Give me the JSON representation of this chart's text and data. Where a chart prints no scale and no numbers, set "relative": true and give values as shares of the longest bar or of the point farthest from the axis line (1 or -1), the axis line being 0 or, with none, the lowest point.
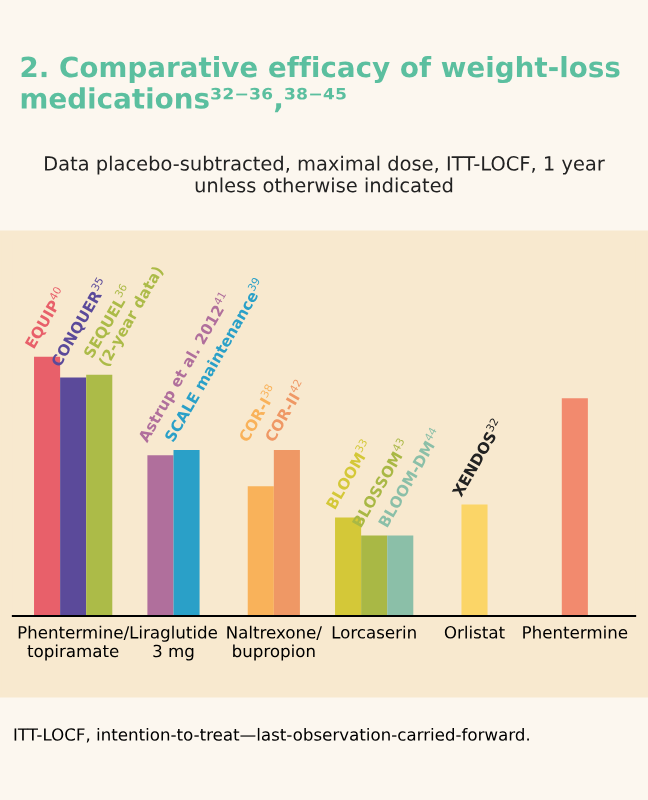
{
  "chart_data": {
    "type": "bar",
    "relative": true,
    "title": "2. Comparative efficacy of weight-loss medications³²⁻³⁶,³⁸⁻⁴⁵",
    "subtitle": "Data placebo-subtracted, maximal dose, ITT-LOCF, 1 year\nunless otherwise indicated",
    "categories": [
      "Phentermine/\ntopiramate",
      "Liraglutide\n3 mg",
      "Naltrexone/\nbupropion",
      "Lorcaserin",
      "Orlistat",
      "Phentermine"
    ],
    "series": [
      {
        "name": "EQUIP$^{40}$",
        "color": "#e8606a",
        "values": [
          1.0,
          null,
          null,
          null,
          null,
          null
        ]
      },
      {
        "name": "CONQUER$^{35}$",
        "color": "#5b4a9a",
        "values": [
          0.92,
          null,
          null,
          null,
          null,
          null
        ]
      },
      {
        "name": "SEQUEL$^{36}$\n(2-year data)",
        "color": "#acbb48",
        "values": [
          0.93,
          null,
          null,
          null,
          null,
          null
        ]
      },
      {
        "name": "Astrup et al. 2012$^{41}$",
        "color": "#b06f9c",
        "values": [
          null,
          0.62,
          null,
          null,
          null,
          null
        ]
      },
      {
        "name": "SCALE maintenance$^{39}$",
        "color": "#2aa0c8",
        "values": [
          null,
          0.64,
          null,
          null,
          null,
          null
        ]
      },
      {
        "name": "COR-I$^{38}$",
        "color": "#f9b25a",
        "values": [
          null,
          null,
          0.5,
          null,
          null,
          null
        ]
      },
      {
        "name": "COR-II$^{42}$",
        "color": "#ef9865",
        "values": [
          null,
          null,
          0.64,
          null,
          null,
          null
        ]
      },
      {
        "name": "BLOOM$^{33}$",
        "color": "#d4c838",
        "values": [
          null,
          null,
          null,
          0.38,
          null,
          null
        ]
      },
      {
        "name": "BLOSSOM$^{43}$",
        "color": "#a9b845",
        "values": [
          null,
          null,
          null,
          0.31,
          null,
          null
        ]
      },
      {
        "name": "BLOOM-DM$^{44}$",
        "color": "#8bbfa8",
        "values": [
          null,
          null,
          null,
          0.31,
          null,
          null
        ]
      },
      {
        "name": "XENDOS$^{32}$",
        "color": "#fbd567",
        "values": [
          null,
          null,
          null,
          null,
          0.43,
          null
        ]
      },
      {
        "color": "#f28a6e",
        "values": [
          null,
          null,
          null,
          null,
          null,
          0.84
        ]
      }
    ],
    "legend": false,
    "grid": false,
    "annotations": [
      "ITT-LOCF, intention-to-treat—last-observation-carried-forward."
    ]
  }
}
